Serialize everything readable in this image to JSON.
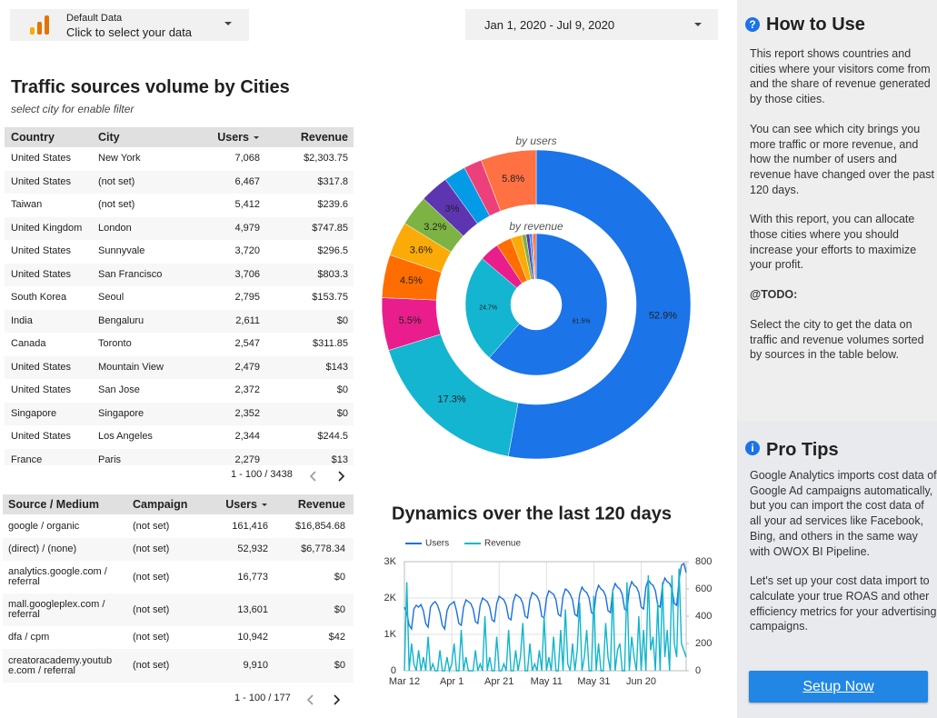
{
  "header": {
    "data_source_label": "Default Data",
    "data_source_action": "Click to select your data",
    "date_range": "Jan 1, 2020 - Jul 9, 2020"
  },
  "title": "Traffic sources volume by Cities",
  "subtitle": "select city for enable filter",
  "cities_table": {
    "columns": [
      "Country",
      "City",
      "Users",
      "Revenue"
    ],
    "rows": [
      [
        "United States",
        "New York",
        "7,068",
        "$2,303.75"
      ],
      [
        "United States",
        "(not set)",
        "6,467",
        "$317.8"
      ],
      [
        "Taiwan",
        "(not set)",
        "5,412",
        "$239.6"
      ],
      [
        "United Kingdom",
        "London",
        "4,979",
        "$747.85"
      ],
      [
        "United States",
        "Sunnyvale",
        "3,720",
        "$296.5"
      ],
      [
        "United States",
        "San Francisco",
        "3,706",
        "$803.3"
      ],
      [
        "South Korea",
        "Seoul",
        "2,795",
        "$153.75"
      ],
      [
        "India",
        "Bengaluru",
        "2,611",
        "$0"
      ],
      [
        "Canada",
        "Toronto",
        "2,547",
        "$311.85"
      ],
      [
        "United States",
        "Mountain View",
        "2,479",
        "$143"
      ],
      [
        "United States",
        "San Jose",
        "2,372",
        "$0"
      ],
      [
        "Singapore",
        "Singapore",
        "2,352",
        "$0"
      ],
      [
        "United States",
        "Los Angeles",
        "2,344",
        "$244.5"
      ],
      [
        "France",
        "Paris",
        "2,279",
        "$13"
      ]
    ],
    "pagination": "1 - 100 / 3438"
  },
  "sources_table": {
    "columns": [
      "Source / Medium",
      "Campaign",
      "Users",
      "Revenue"
    ],
    "rows": [
      [
        "google / organic",
        "(not set)",
        "161,416",
        "$16,854.68"
      ],
      [
        "(direct) / (none)",
        "(not set)",
        "52,932",
        "$6,778.34"
      ],
      [
        "analytics.google.com / referral",
        "(not set)",
        "16,773",
        "$0"
      ],
      [
        "mall.googleplex.com / referral",
        "(not set)",
        "13,601",
        "$0"
      ],
      [
        "dfa / cpm",
        "(not set)",
        "10,942",
        "$42"
      ],
      [
        "creatoracademy.youtube.com / referral",
        "(not set)",
        "9,910",
        "$0"
      ]
    ],
    "pagination": "1 - 100 / 177"
  },
  "chart_data": [
    {
      "type": "donut",
      "colors": [
        "#1b74e8",
        "#13b5d0",
        "#e91e8c",
        "#ff6d00",
        "#fbab07",
        "#7cb342",
        "#5e35b1",
        "#039be5",
        "#ec407a",
        "#ff7043"
      ],
      "series": [
        {
          "name": "by users",
          "values": [
            52.9,
            17.3,
            5.5,
            4.5,
            3.6,
            3.2,
            3,
            2.3,
            1.9,
            5.8
          ],
          "value_labels": [
            "52.9%",
            "17.3%",
            "5.5%",
            "4.5%",
            "3.6%",
            "3.2%",
            "3%",
            null,
            null,
            "5.8%"
          ]
        },
        {
          "name": "by revenue",
          "values": [
            61.5,
            24.7,
            4.5,
            3.5,
            2.5,
            1,
            0.8,
            0.5,
            0.3,
            0.7
          ],
          "value_labels": [
            "61.5%",
            "24.7%",
            null,
            null,
            null,
            null,
            null,
            null,
            null,
            null
          ]
        }
      ]
    },
    {
      "type": "line",
      "title": "Dynamics over the last 120 days",
      "grid": true,
      "x": [
        0,
        1,
        2,
        3,
        4,
        5,
        6,
        7,
        8,
        9,
        10,
        11,
        12,
        13,
        14,
        15,
        16,
        17,
        18,
        19,
        20,
        21,
        22,
        23,
        24,
        25,
        26,
        27,
        28,
        29,
        30,
        31,
        32,
        33,
        34,
        35,
        36,
        37,
        38,
        39,
        40,
        41,
        42,
        43,
        44,
        45,
        46,
        47,
        48,
        49,
        50,
        51,
        52,
        53,
        54,
        55,
        56,
        57,
        58,
        59,
        60,
        61,
        62,
        63,
        64,
        65,
        66,
        67,
        68,
        69,
        70,
        71,
        72,
        73,
        74,
        75,
        76,
        77,
        78,
        79,
        80,
        81,
        82,
        83,
        84,
        85,
        86,
        87,
        88,
        89,
        90,
        91,
        92,
        93,
        94,
        95,
        96,
        97,
        98,
        99,
        100,
        101,
        102,
        103,
        104,
        105,
        106,
        107,
        108,
        109,
        110,
        111,
        112,
        113,
        114,
        115,
        116,
        117,
        118,
        119
      ],
      "xlim": [
        0,
        119
      ],
      "xticks": [
        {
          "value": 0,
          "label": "Mar 12"
        },
        {
          "value": 20,
          "label": "Apr 1"
        },
        {
          "value": 40,
          "label": "Apr 21"
        },
        {
          "value": 60,
          "label": "May 11"
        },
        {
          "value": 80,
          "label": "May 31"
        },
        {
          "value": 100,
          "label": "Jun 20"
        }
      ],
      "ylim": [
        0,
        3000
      ],
      "yticks": [
        0,
        {
          "value": 1000,
          "label": "1K"
        },
        {
          "value": 2000,
          "label": "2K"
        },
        {
          "value": 3000,
          "label": "3K"
        }
      ],
      "y2lim": [
        0,
        800
      ],
      "y2ticks": [
        0,
        200,
        400,
        600,
        800
      ],
      "series": [
        {
          "name": "Users",
          "color": "#1a6fe0",
          "values": [
            1750,
            1600,
            1250,
            1150,
            1700,
            1800,
            1750,
            1820,
            1650,
            1300,
            1200,
            1750,
            1850,
            1900,
            1800,
            1600,
            1250,
            1150,
            1650,
            1800,
            1850,
            1900,
            1650,
            1300,
            1250,
            1750,
            1950,
            1900,
            1850,
            1700,
            1350,
            1300,
            1800,
            2000,
            1950,
            1900,
            1750,
            1400,
            1350,
            1850,
            2050,
            2000,
            1950,
            1800,
            1450,
            1400,
            1900,
            2100,
            2050,
            2000,
            1850,
            1500,
            1450,
            1950,
            2150,
            2100,
            2050,
            1900,
            1500,
            1450,
            2000,
            2200,
            2150,
            2100,
            1950,
            1550,
            1500,
            2050,
            2250,
            2200,
            2100,
            1950,
            1550,
            1500,
            2100,
            2300,
            2200,
            2150,
            2000,
            1600,
            1550,
            2150,
            2350,
            2250,
            2200,
            2050,
            1650,
            1600,
            2200,
            2400,
            2300,
            2250,
            2100,
            1700,
            1650,
            2250,
            2450,
            2350,
            2300,
            2150,
            1750,
            1700,
            2300,
            2500,
            2400,
            2350,
            2200,
            1800,
            1750,
            2350,
            2550,
            2450,
            2400,
            2250,
            1850,
            1800,
            2500,
            2900,
            2950,
            2700
          ]
        },
        {
          "name": "Revenue",
          "color": "#12b5cb",
          "axis": "y2",
          "values": [
            0,
            650,
            0,
            200,
            50,
            0,
            150,
            0,
            100,
            0,
            250,
            0,
            50,
            0,
            0,
            150,
            0,
            0,
            100,
            0,
            50,
            200,
            0,
            0,
            300,
            0,
            100,
            0,
            0,
            0,
            150,
            0,
            50,
            0,
            400,
            0,
            100,
            0,
            0,
            250,
            0,
            0,
            50,
            0,
            300,
            0,
            0,
            150,
            0,
            100,
            350,
            0,
            0,
            200,
            0,
            50,
            0,
            150,
            0,
            400,
            0,
            100,
            0,
            250,
            0,
            0,
            300,
            0,
            450,
            50,
            0,
            200,
            0,
            150,
            500,
            0,
            100,
            300,
            0,
            0,
            550,
            0,
            200,
            0,
            0,
            350,
            100,
            0,
            600,
            0,
            150,
            200,
            0,
            0,
            650,
            0,
            250,
            100,
            0,
            400,
            0,
            300,
            0,
            700,
            150,
            250,
            0,
            500,
            0,
            650,
            100,
            300,
            0,
            700,
            200,
            100,
            750,
            200,
            150,
            100
          ]
        }
      ]
    }
  ],
  "how_to_use": {
    "title": "How to Use",
    "paragraphs": [
      "This report shows countries and cities where your visitors come from and the share of revenue generated by those cities.",
      "You can see which city brings you more traffic or more revenue, and how the number of users and revenue have changed over the past 120 days.",
      "With this report, you can allocate those cities where you should increase your efforts to maximize your profit."
    ],
    "note": "@TODO:",
    "note_text": "Select the city to get the data on traffic and revenue volumes sorted by sources in the table below."
  },
  "pro_tips": {
    "title": "Pro Tips",
    "paragraphs": [
      "Google Analytics imports cost data of Google Ad campaigns automatically, but you can import the cost data of all your ad services like Facebook, Bing, and others in the same way with OWOX BI Pipeline.",
      "Let's set up your cost data import to calculate your true ROAS and other efficiency metrics for your advertising campaigns."
    ],
    "button": "Setup Now"
  }
}
